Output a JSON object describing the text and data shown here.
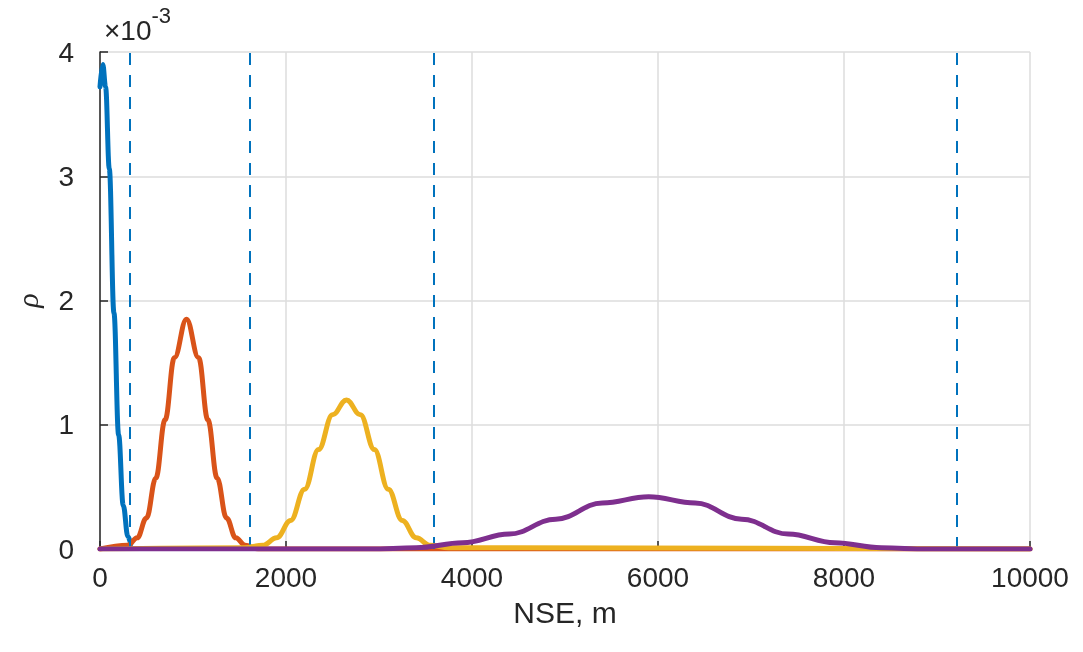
{
  "chart_data": {
    "type": "line",
    "xlabel": "NSE, m",
    "ylabel": "ρ",
    "annotations": [
      "×10$^{-3}$"
    ],
    "xlim": [
      0,
      10000
    ],
    "xticks": [
      0,
      2000,
      4000,
      6000,
      8000,
      10000
    ],
    "ylim": [
      0,
      4
    ],
    "yticks": [
      0,
      1,
      2,
      3,
      4
    ],
    "grid": true,
    "marker": "none",
    "line_style": "solid",
    "series": [
      {
        "color": "#0072bd",
        "x": [
          0,
          30,
          60,
          100,
          150,
          200,
          250,
          300,
          330
        ],
        "values": [
          3.72,
          3.9,
          3.72,
          3.06,
          1.9,
          0.92,
          0.35,
          0.1,
          0.04
        ]
      },
      {
        "color": "#d95319",
        "x": [
          0,
          300,
          400,
          500,
          600,
          700,
          800,
          930,
          1060,
          1160,
          1260,
          1360,
          1460,
          1560,
          1700,
          10000
        ],
        "values": [
          0,
          0.03,
          0.09,
          0.25,
          0.57,
          1.04,
          1.54,
          1.85,
          1.54,
          1.04,
          0.57,
          0.25,
          0.09,
          0.03,
          0,
          0
        ]
      },
      {
        "color": "#edb120",
        "x": [
          0,
          1550,
          1750,
          1900,
          2050,
          2200,
          2350,
          2500,
          2650,
          2800,
          2950,
          3100,
          3250,
          3400,
          3550,
          3750,
          10000
        ],
        "values": [
          0,
          0.01,
          0.03,
          0.09,
          0.23,
          0.48,
          0.8,
          1.08,
          1.2,
          1.08,
          0.8,
          0.48,
          0.23,
          0.09,
          0.03,
          0.01,
          0
        ]
      },
      {
        "color": "#7e2f8e",
        "x": [
          0,
          2900,
          3400,
          3900,
          4400,
          4900,
          5400,
          5900,
          6400,
          6900,
          7400,
          7900,
          8400,
          8900,
          10000
        ],
        "values": [
          0,
          0,
          0.01,
          0.05,
          0.12,
          0.24,
          0.37,
          0.42,
          0.37,
          0.24,
          0.12,
          0.05,
          0.01,
          0,
          0
        ]
      }
    ],
    "ref_lines": [
      {
        "axis": "x",
        "value": 323,
        "color": "#0072bd",
        "line_style": "dashed"
      },
      {
        "axis": "x",
        "value": 1613,
        "color": "#0072bd",
        "line_style": "dashed"
      },
      {
        "axis": "x",
        "value": 3591,
        "color": "#0072bd",
        "line_style": "dashed"
      },
      {
        "axis": "x",
        "value": 9215,
        "color": "#0072bd",
        "line_style": "dashed"
      }
    ]
  }
}
